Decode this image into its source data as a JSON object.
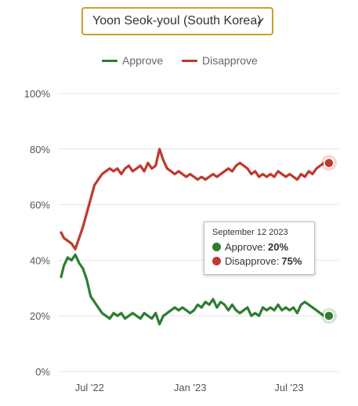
{
  "selector": {
    "value": "Yoon Seok-youl (South Korea)"
  },
  "legend": [
    {
      "label": "Approve",
      "color": "#2e7d32"
    },
    {
      "label": "Disapprove",
      "color": "#c0392b"
    }
  ],
  "tooltip": {
    "date": "September 12 2023",
    "approve_label": "Approve:",
    "approve_value": "20%",
    "disapprove_label": "Disapprove:",
    "disapprove_value": "75%"
  },
  "chart_data": {
    "type": "line",
    "title": "",
    "xlabel": "",
    "ylabel": "",
    "ylim": [
      0,
      100
    ],
    "yticks": [
      "0%",
      "20%",
      "40%",
      "60%",
      "80%",
      "100%"
    ],
    "xticks": [
      {
        "label": "Jul '22",
        "date": "2022-07-01"
      },
      {
        "label": "Jan '23",
        "date": "2023-01-01"
      },
      {
        "label": "Jul '23",
        "date": "2023-07-01"
      }
    ],
    "xlim": [
      "2022-05-10",
      "2023-09-15"
    ],
    "grid": true,
    "legend_position": "top-center",
    "series": [
      {
        "name": "Approve",
        "color": "#2e7d32",
        "points": [
          [
            "2022-05-10",
            34
          ],
          [
            "2022-05-15",
            38
          ],
          [
            "2022-05-22",
            41
          ],
          [
            "2022-05-29",
            40
          ],
          [
            "2022-06-05",
            42
          ],
          [
            "2022-06-12",
            39
          ],
          [
            "2022-06-19",
            37
          ],
          [
            "2022-06-26",
            33
          ],
          [
            "2022-07-03",
            27
          ],
          [
            "2022-07-10",
            25
          ],
          [
            "2022-07-17",
            23
          ],
          [
            "2022-07-24",
            21
          ],
          [
            "2022-07-31",
            20
          ],
          [
            "2022-08-07",
            19
          ],
          [
            "2022-08-14",
            21
          ],
          [
            "2022-08-21",
            20
          ],
          [
            "2022-08-28",
            21
          ],
          [
            "2022-09-04",
            19
          ],
          [
            "2022-09-11",
            20
          ],
          [
            "2022-09-18",
            21
          ],
          [
            "2022-09-25",
            20
          ],
          [
            "2022-10-02",
            19
          ],
          [
            "2022-10-09",
            21
          ],
          [
            "2022-10-16",
            20
          ],
          [
            "2022-10-23",
            19
          ],
          [
            "2022-10-30",
            21
          ],
          [
            "2022-11-06",
            17
          ],
          [
            "2022-11-13",
            20
          ],
          [
            "2022-11-20",
            21
          ],
          [
            "2022-11-27",
            22
          ],
          [
            "2022-12-04",
            23
          ],
          [
            "2022-12-11",
            22
          ],
          [
            "2022-12-18",
            23
          ],
          [
            "2022-12-25",
            22
          ],
          [
            "2023-01-01",
            21
          ],
          [
            "2023-01-08",
            22
          ],
          [
            "2023-01-15",
            24
          ],
          [
            "2023-01-22",
            23
          ],
          [
            "2023-01-29",
            25
          ],
          [
            "2023-02-05",
            24
          ],
          [
            "2023-02-12",
            26
          ],
          [
            "2023-02-19",
            23
          ],
          [
            "2023-02-26",
            25
          ],
          [
            "2023-03-05",
            24
          ],
          [
            "2023-03-12",
            22
          ],
          [
            "2023-03-19",
            24
          ],
          [
            "2023-03-26",
            22
          ],
          [
            "2023-04-02",
            21
          ],
          [
            "2023-04-09",
            22
          ],
          [
            "2023-04-16",
            23
          ],
          [
            "2023-04-23",
            20
          ],
          [
            "2023-04-30",
            21
          ],
          [
            "2023-05-07",
            20
          ],
          [
            "2023-05-14",
            23
          ],
          [
            "2023-05-21",
            22
          ],
          [
            "2023-05-28",
            23
          ],
          [
            "2023-06-04",
            22
          ],
          [
            "2023-06-11",
            24
          ],
          [
            "2023-06-18",
            22
          ],
          [
            "2023-06-25",
            23
          ],
          [
            "2023-07-02",
            22
          ],
          [
            "2023-07-09",
            23
          ],
          [
            "2023-07-16",
            21
          ],
          [
            "2023-07-23",
            24
          ],
          [
            "2023-07-30",
            25
          ],
          [
            "2023-08-06",
            24
          ],
          [
            "2023-08-13",
            23
          ],
          [
            "2023-08-20",
            22
          ],
          [
            "2023-08-27",
            21
          ],
          [
            "2023-09-03",
            20
          ],
          [
            "2023-09-12",
            20
          ]
        ]
      },
      {
        "name": "Disapprove",
        "color": "#c0392b",
        "points": [
          [
            "2022-05-10",
            50
          ],
          [
            "2022-05-15",
            48
          ],
          [
            "2022-05-22",
            47
          ],
          [
            "2022-05-29",
            46
          ],
          [
            "2022-06-05",
            44
          ],
          [
            "2022-06-12",
            48
          ],
          [
            "2022-06-19",
            52
          ],
          [
            "2022-06-26",
            57
          ],
          [
            "2022-07-03",
            62
          ],
          [
            "2022-07-10",
            67
          ],
          [
            "2022-07-17",
            69
          ],
          [
            "2022-07-24",
            71
          ],
          [
            "2022-07-31",
            72
          ],
          [
            "2022-08-07",
            73
          ],
          [
            "2022-08-14",
            72
          ],
          [
            "2022-08-21",
            73
          ],
          [
            "2022-08-28",
            71
          ],
          [
            "2022-09-04",
            73
          ],
          [
            "2022-09-11",
            74
          ],
          [
            "2022-09-18",
            72
          ],
          [
            "2022-09-25",
            73
          ],
          [
            "2022-10-02",
            74
          ],
          [
            "2022-10-09",
            72
          ],
          [
            "2022-10-16",
            75
          ],
          [
            "2022-10-23",
            73
          ],
          [
            "2022-10-30",
            74
          ],
          [
            "2022-11-06",
            80
          ],
          [
            "2022-11-13",
            76
          ],
          [
            "2022-11-20",
            73
          ],
          [
            "2022-11-27",
            72
          ],
          [
            "2022-12-04",
            71
          ],
          [
            "2022-12-11",
            72
          ],
          [
            "2022-12-18",
            71
          ],
          [
            "2022-12-25",
            70
          ],
          [
            "2023-01-01",
            71
          ],
          [
            "2023-01-08",
            70
          ],
          [
            "2023-01-15",
            69
          ],
          [
            "2023-01-22",
            70
          ],
          [
            "2023-01-29",
            69
          ],
          [
            "2023-02-05",
            70
          ],
          [
            "2023-02-12",
            71
          ],
          [
            "2023-02-19",
            70
          ],
          [
            "2023-02-26",
            71
          ],
          [
            "2023-03-05",
            72
          ],
          [
            "2023-03-12",
            73
          ],
          [
            "2023-03-19",
            72
          ],
          [
            "2023-03-26",
            74
          ],
          [
            "2023-04-02",
            75
          ],
          [
            "2023-04-09",
            74
          ],
          [
            "2023-04-16",
            73
          ],
          [
            "2023-04-23",
            71
          ],
          [
            "2023-04-30",
            72
          ],
          [
            "2023-05-07",
            70
          ],
          [
            "2023-05-14",
            71
          ],
          [
            "2023-05-21",
            70
          ],
          [
            "2023-05-28",
            71
          ],
          [
            "2023-06-04",
            70
          ],
          [
            "2023-06-11",
            72
          ],
          [
            "2023-06-18",
            71
          ],
          [
            "2023-06-25",
            70
          ],
          [
            "2023-07-02",
            71
          ],
          [
            "2023-07-09",
            70
          ],
          [
            "2023-07-16",
            69
          ],
          [
            "2023-07-23",
            71
          ],
          [
            "2023-07-30",
            70
          ],
          [
            "2023-08-06",
            72
          ],
          [
            "2023-08-13",
            71
          ],
          [
            "2023-08-20",
            73
          ],
          [
            "2023-08-27",
            74
          ],
          [
            "2023-09-03",
            75
          ],
          [
            "2023-09-12",
            75
          ]
        ]
      }
    ]
  }
}
